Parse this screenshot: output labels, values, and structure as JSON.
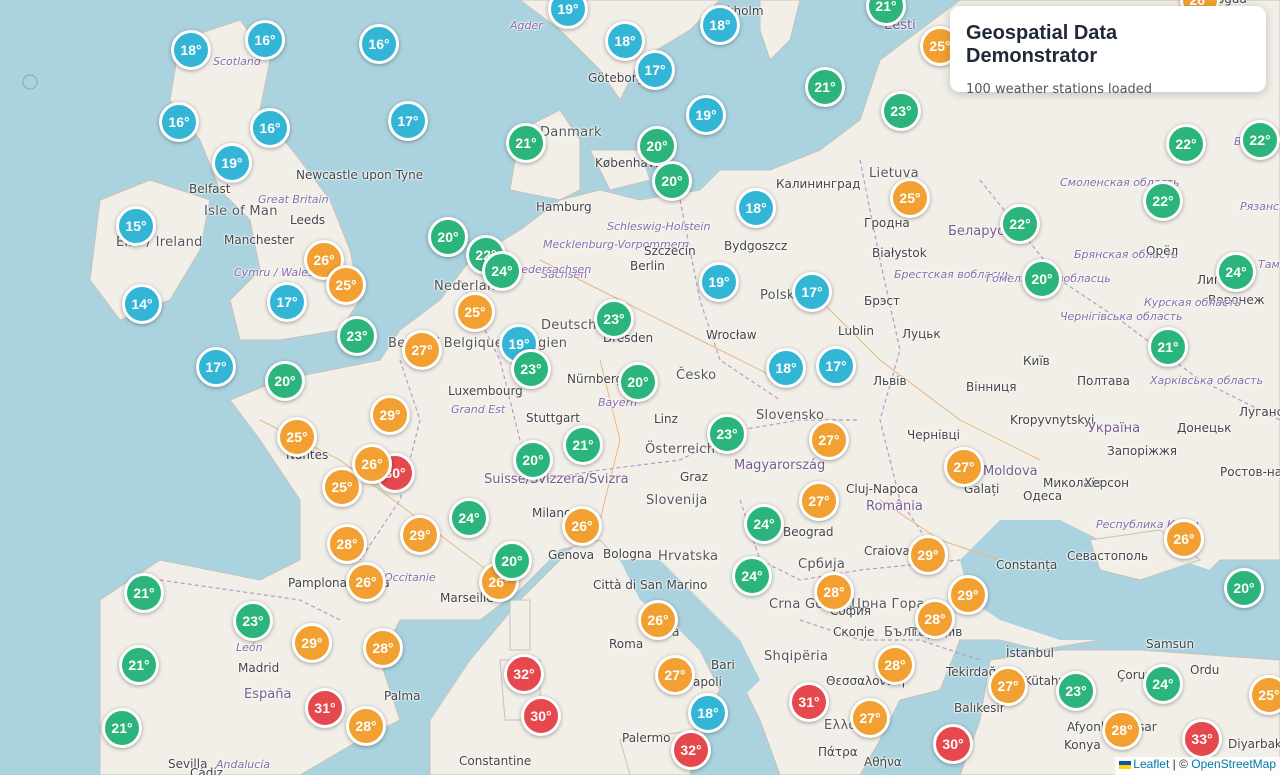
{
  "app": {
    "title": "Geospatial Data Demonstrator",
    "subtitle": "100 weather stations loaded"
  },
  "attribution": {
    "leaflet": "Leaflet",
    "separator": "| ©",
    "osm": "OpenStreetMap"
  },
  "colors": {
    "cool": "#33b5d6",
    "mild": "#2bb47b",
    "warm": "#f2a032",
    "hot": "#e5484d",
    "sea": "#aad3df",
    "land": "#f2efe9"
  },
  "place_labels": [
    {
      "text": "Scotland",
      "cls": "it"
    },
    {
      "text": "Agder",
      "cls": "it"
    },
    {
      "text": "Göteborg",
      "cls": ""
    },
    {
      "text": "ckholm",
      "cls": ""
    },
    {
      "text": "Eesti",
      "cls": "country"
    },
    {
      "text": "Belfast",
      "cls": ""
    },
    {
      "text": "Newcastle upon Tyne",
      "cls": ""
    },
    {
      "text": "Great Britain",
      "cls": "it"
    },
    {
      "text": "Isle of Man",
      "cls": "big"
    },
    {
      "text": "Leeds",
      "cls": ""
    },
    {
      "text": "Manchester",
      "cls": ""
    },
    {
      "text": "Éire / Ireland",
      "cls": "big"
    },
    {
      "text": "Cymru / Wales",
      "cls": "it"
    },
    {
      "text": "København",
      "cls": ""
    },
    {
      "text": "Danmark",
      "cls": "big"
    },
    {
      "text": "Hamburg",
      "cls": ""
    },
    {
      "text": "Schleswig-Holstein",
      "cls": "it"
    },
    {
      "text": "Mecklenburg-Vorpommern",
      "cls": "it"
    },
    {
      "text": "Szczecin",
      "cls": ""
    },
    {
      "text": "Berlin",
      "cls": ""
    },
    {
      "text": "Bydgoszcz",
      "cls": ""
    },
    {
      "text": "Калининград",
      "cls": ""
    },
    {
      "text": "Гродна",
      "cls": ""
    },
    {
      "text": "Białystok",
      "cls": ""
    },
    {
      "text": "Беларусь",
      "cls": "country"
    },
    {
      "text": "Смоленская область",
      "cls": "it"
    },
    {
      "text": "Брестская вобласць",
      "cls": "it"
    },
    {
      "text": "Гомельская вобласць",
      "cls": "it"
    },
    {
      "text": "Брянская область",
      "cls": "it"
    },
    {
      "text": "Брэст",
      "cls": ""
    },
    {
      "text": "Lublin",
      "cls": ""
    },
    {
      "text": "Луцьк",
      "cls": ""
    },
    {
      "text": "Орёл",
      "cls": ""
    },
    {
      "text": "Воронеж",
      "cls": ""
    },
    {
      "text": "Курская область",
      "cls": "it"
    },
    {
      "text": "Полтава",
      "cls": ""
    },
    {
      "text": "Харківська область",
      "cls": "it"
    },
    {
      "text": "Київ",
      "cls": ""
    },
    {
      "text": "Вінниця",
      "cls": ""
    },
    {
      "text": "Львів",
      "cls": ""
    },
    {
      "text": "Чернігівська область",
      "cls": "it"
    },
    {
      "text": "Dresden",
      "cls": ""
    },
    {
      "text": "Wrocław",
      "cls": ""
    },
    {
      "text": "Česko",
      "cls": "big"
    },
    {
      "text": "Nürnberg",
      "cls": ""
    },
    {
      "text": "Luxembourg",
      "cls": ""
    },
    {
      "text": "Grand Est",
      "cls": "it"
    },
    {
      "text": "Stuttgart",
      "cls": ""
    },
    {
      "text": "Bayern",
      "cls": "it"
    },
    {
      "text": "Linz",
      "cls": ""
    },
    {
      "text": "Österreich",
      "cls": "big"
    },
    {
      "text": "Magyarország",
      "cls": "country"
    },
    {
      "text": "Kropyvnytskyi",
      "cls": ""
    },
    {
      "text": "Україна",
      "cls": "country"
    },
    {
      "text": "Донецьк",
      "cls": ""
    },
    {
      "text": "Луганськ",
      "cls": ""
    },
    {
      "text": "Запоріжжя",
      "cls": ""
    },
    {
      "text": "Миколаїв",
      "cls": ""
    },
    {
      "text": "Херсон",
      "cls": ""
    },
    {
      "text": "Одеса",
      "cls": ""
    },
    {
      "text": "Ростов-на-Дону",
      "cls": ""
    },
    {
      "text": "Республика Крым",
      "cls": "it"
    },
    {
      "text": "Севастополь",
      "cls": ""
    },
    {
      "text": "Cluj-Napoca",
      "cls": ""
    },
    {
      "text": "România",
      "cls": "country"
    },
    {
      "text": "Galați",
      "cls": ""
    },
    {
      "text": "Moldova",
      "cls": "country"
    },
    {
      "text": "Nantes",
      "cls": ""
    },
    {
      "text": "Suisse/Svizzera/Svizra",
      "cls": "country"
    },
    {
      "text": "Graz",
      "cls": ""
    },
    {
      "text": "Slovenija",
      "cls": "big"
    },
    {
      "text": "Milano",
      "cls": ""
    },
    {
      "text": "Hrvatska",
      "cls": "big"
    },
    {
      "text": "Beograd",
      "cls": ""
    },
    {
      "text": "Craiova",
      "cls": ""
    },
    {
      "text": "Constanța",
      "cls": ""
    },
    {
      "text": "Bologna",
      "cls": ""
    },
    {
      "text": "Genova",
      "cls": ""
    },
    {
      "text": "Marseille",
      "cls": ""
    },
    {
      "text": "Pamplona / Iruña",
      "cls": ""
    },
    {
      "text": "Città di San Marino",
      "cls": ""
    },
    {
      "text": "Crna Gora / Црна Гора",
      "cls": "big"
    },
    {
      "text": "София",
      "cls": ""
    },
    {
      "text": "Скопје",
      "cls": ""
    },
    {
      "text": "Пловдив",
      "cls": ""
    },
    {
      "text": "İstanbul",
      "cls": ""
    },
    {
      "text": "Tekirdağ",
      "cls": ""
    },
    {
      "text": "Samsun",
      "cls": ""
    },
    {
      "text": "Ordu",
      "cls": ""
    },
    {
      "text": "Çorum",
      "cls": ""
    },
    {
      "text": "Kütahya",
      "cls": ""
    },
    {
      "text": "Balıkesir",
      "cls": ""
    },
    {
      "text": "Afyonkarahisar",
      "cls": ""
    },
    {
      "text": "Konya",
      "cls": ""
    },
    {
      "text": "Diyarbakır",
      "cls": ""
    },
    {
      "text": "Θεσσαλονίκη",
      "cls": ""
    },
    {
      "text": "Shqipëria",
      "cls": "big"
    },
    {
      "text": "Ελλάδα",
      "cls": "big"
    },
    {
      "text": "Πάτρα",
      "cls": ""
    },
    {
      "text": "Αθήνα",
      "cls": ""
    },
    {
      "text": "Italia",
      "cls": "big"
    },
    {
      "text": "Roma",
      "cls": ""
    },
    {
      "text": "Bari",
      "cls": ""
    },
    {
      "text": "Napoli",
      "cls": ""
    },
    {
      "text": "Palermo",
      "cls": ""
    },
    {
      "text": "Madrid",
      "cls": ""
    },
    {
      "text": "España",
      "cls": "country"
    },
    {
      "text": "Palma",
      "cls": ""
    },
    {
      "text": "Constantine",
      "cls": ""
    },
    {
      "text": "León",
      "cls": "it"
    },
    {
      "text": "Sevilla",
      "cls": ""
    },
    {
      "text": "Andalucía",
      "cls": "it"
    },
    {
      "text": "Polska",
      "cls": "big"
    },
    {
      "text": "Deutschland",
      "cls": "big"
    },
    {
      "text": "Nederland",
      "cls": "big"
    },
    {
      "text": "België / Belgique / Belgien",
      "cls": "big"
    },
    {
      "text": "Slovensko",
      "cls": "big"
    },
    {
      "text": "Lietuva",
      "cls": "big"
    },
    {
      "text": "Vologda",
      "cls": ""
    },
    {
      "text": "Владимирская область",
      "cls": "it"
    },
    {
      "text": "Рязанская область",
      "cls": "it"
    },
    {
      "text": "Тамбовская область",
      "cls": "it"
    },
    {
      "text": "Липецк",
      "cls": ""
    },
    {
      "text": "Чернівці",
      "cls": ""
    },
    {
      "text": "Sachsen",
      "cls": "it"
    },
    {
      "text": "Niedersachsen",
      "cls": "it"
    },
    {
      "text": "Србија",
      "cls": "big"
    },
    {
      "text": "България",
      "cls": "big"
    },
    {
      "text": "Occitanie",
      "cls": "it"
    },
    {
      "text": "Cádiz",
      "cls": ""
    }
  ],
  "stations": [
    {
      "temp": "19°",
      "t": 19
    },
    {
      "temp": "18°",
      "t": 18
    },
    {
      "temp": "21°",
      "t": 21
    },
    {
      "temp": "25°",
      "t": 25
    },
    {
      "temp": "18°",
      "t": 18
    },
    {
      "temp": "16°",
      "t": 16
    },
    {
      "temp": "16°",
      "t": 16
    },
    {
      "temp": "18°",
      "t": 18
    },
    {
      "temp": "17°",
      "t": 17
    },
    {
      "temp": "21°",
      "t": 21
    },
    {
      "temp": "23°",
      "t": 23
    },
    {
      "temp": "16°",
      "t": 16
    },
    {
      "temp": "16°",
      "t": 16
    },
    {
      "temp": "17°",
      "t": 17
    },
    {
      "temp": "21°",
      "t": 21
    },
    {
      "temp": "20°",
      "t": 20
    },
    {
      "temp": "19°",
      "t": 19
    },
    {
      "temp": "22°",
      "t": 22
    },
    {
      "temp": "19°",
      "t": 19
    },
    {
      "temp": "20°",
      "t": 20
    },
    {
      "temp": "15°",
      "t": 15
    },
    {
      "temp": "18°",
      "t": 18
    },
    {
      "temp": "25°",
      "t": 25
    },
    {
      "temp": "22°",
      "t": 22
    },
    {
      "temp": "22°",
      "t": 22
    },
    {
      "temp": "20°",
      "t": 20
    },
    {
      "temp": "22°",
      "t": 22
    },
    {
      "temp": "24°",
      "t": 24
    },
    {
      "temp": "26°",
      "t": 26
    },
    {
      "temp": "25°",
      "t": 25
    },
    {
      "temp": "24°",
      "t": 24
    },
    {
      "temp": "14°",
      "t": 14
    },
    {
      "temp": "17°",
      "t": 17
    },
    {
      "temp": "25°",
      "t": 25
    },
    {
      "temp": "19°",
      "t": 19
    },
    {
      "temp": "17°",
      "t": 17
    },
    {
      "temp": "20°",
      "t": 20
    },
    {
      "temp": "23°",
      "t": 23
    },
    {
      "temp": "23°",
      "t": 23
    },
    {
      "temp": "27°",
      "t": 27
    },
    {
      "temp": "19°",
      "t": 19
    },
    {
      "temp": "23°",
      "t": 23
    },
    {
      "temp": "21°",
      "t": 21
    },
    {
      "temp": "18°",
      "t": 18
    },
    {
      "temp": "17°",
      "t": 17
    },
    {
      "temp": "17°",
      "t": 17
    },
    {
      "temp": "20°",
      "t": 20
    },
    {
      "temp": "20°",
      "t": 20
    },
    {
      "temp": "29°",
      "t": 29
    },
    {
      "temp": "25°",
      "t": 25
    },
    {
      "temp": "23°",
      "t": 23
    },
    {
      "temp": "27°",
      "t": 27
    },
    {
      "temp": "27°",
      "t": 27
    },
    {
      "temp": "21°",
      "t": 21
    },
    {
      "temp": "20°",
      "t": 20
    },
    {
      "temp": "29°",
      "t": 29
    },
    {
      "temp": "30°",
      "t": 30
    },
    {
      "temp": "25°",
      "t": 25
    },
    {
      "temp": "24°",
      "t": 24
    },
    {
      "temp": "27°",
      "t": 27
    },
    {
      "temp": "24°",
      "t": 24
    },
    {
      "temp": "26°",
      "t": 26
    },
    {
      "temp": "26°",
      "t": 26
    },
    {
      "temp": "26°",
      "t": 26
    },
    {
      "temp": "28°",
      "t": 28
    },
    {
      "temp": "21°",
      "t": 21
    },
    {
      "temp": "26°",
      "t": 26
    },
    {
      "temp": "26°",
      "t": 26
    },
    {
      "temp": "24°",
      "t": 24
    },
    {
      "temp": "29°",
      "t": 29
    },
    {
      "temp": "28°",
      "t": 28
    },
    {
      "temp": "29°",
      "t": 29
    },
    {
      "temp": "20°",
      "t": 20
    },
    {
      "temp": "23°",
      "t": 23
    },
    {
      "temp": "29°",
      "t": 29
    },
    {
      "temp": "28°",
      "t": 28
    },
    {
      "temp": "26°",
      "t": 26
    },
    {
      "temp": "28°",
      "t": 28
    },
    {
      "temp": "21°",
      "t": 21
    },
    {
      "temp": "32°",
      "t": 32
    },
    {
      "temp": "27°",
      "t": 27
    },
    {
      "temp": "28°",
      "t": 28
    },
    {
      "temp": "27°",
      "t": 27
    },
    {
      "temp": "23°",
      "t": 23
    },
    {
      "temp": "24°",
      "t": 24
    },
    {
      "temp": "25°",
      "t": 25
    },
    {
      "temp": "31°",
      "t": 31
    },
    {
      "temp": "30°",
      "t": 30
    },
    {
      "temp": "18°",
      "t": 18
    },
    {
      "temp": "31°",
      "t": 31
    },
    {
      "temp": "27°",
      "t": 27
    },
    {
      "temp": "20°",
      "t": 20
    },
    {
      "temp": "28°",
      "t": 28
    },
    {
      "temp": "30°",
      "t": 30
    },
    {
      "temp": "28°",
      "t": 28
    },
    {
      "temp": "33°",
      "t": 33
    },
    {
      "temp": "32°",
      "t": 32
    },
    {
      "temp": "26°",
      "t": 26
    },
    {
      "temp": "22°",
      "t": 22
    },
    {
      "temp": "21°",
      "t": 21
    }
  ]
}
